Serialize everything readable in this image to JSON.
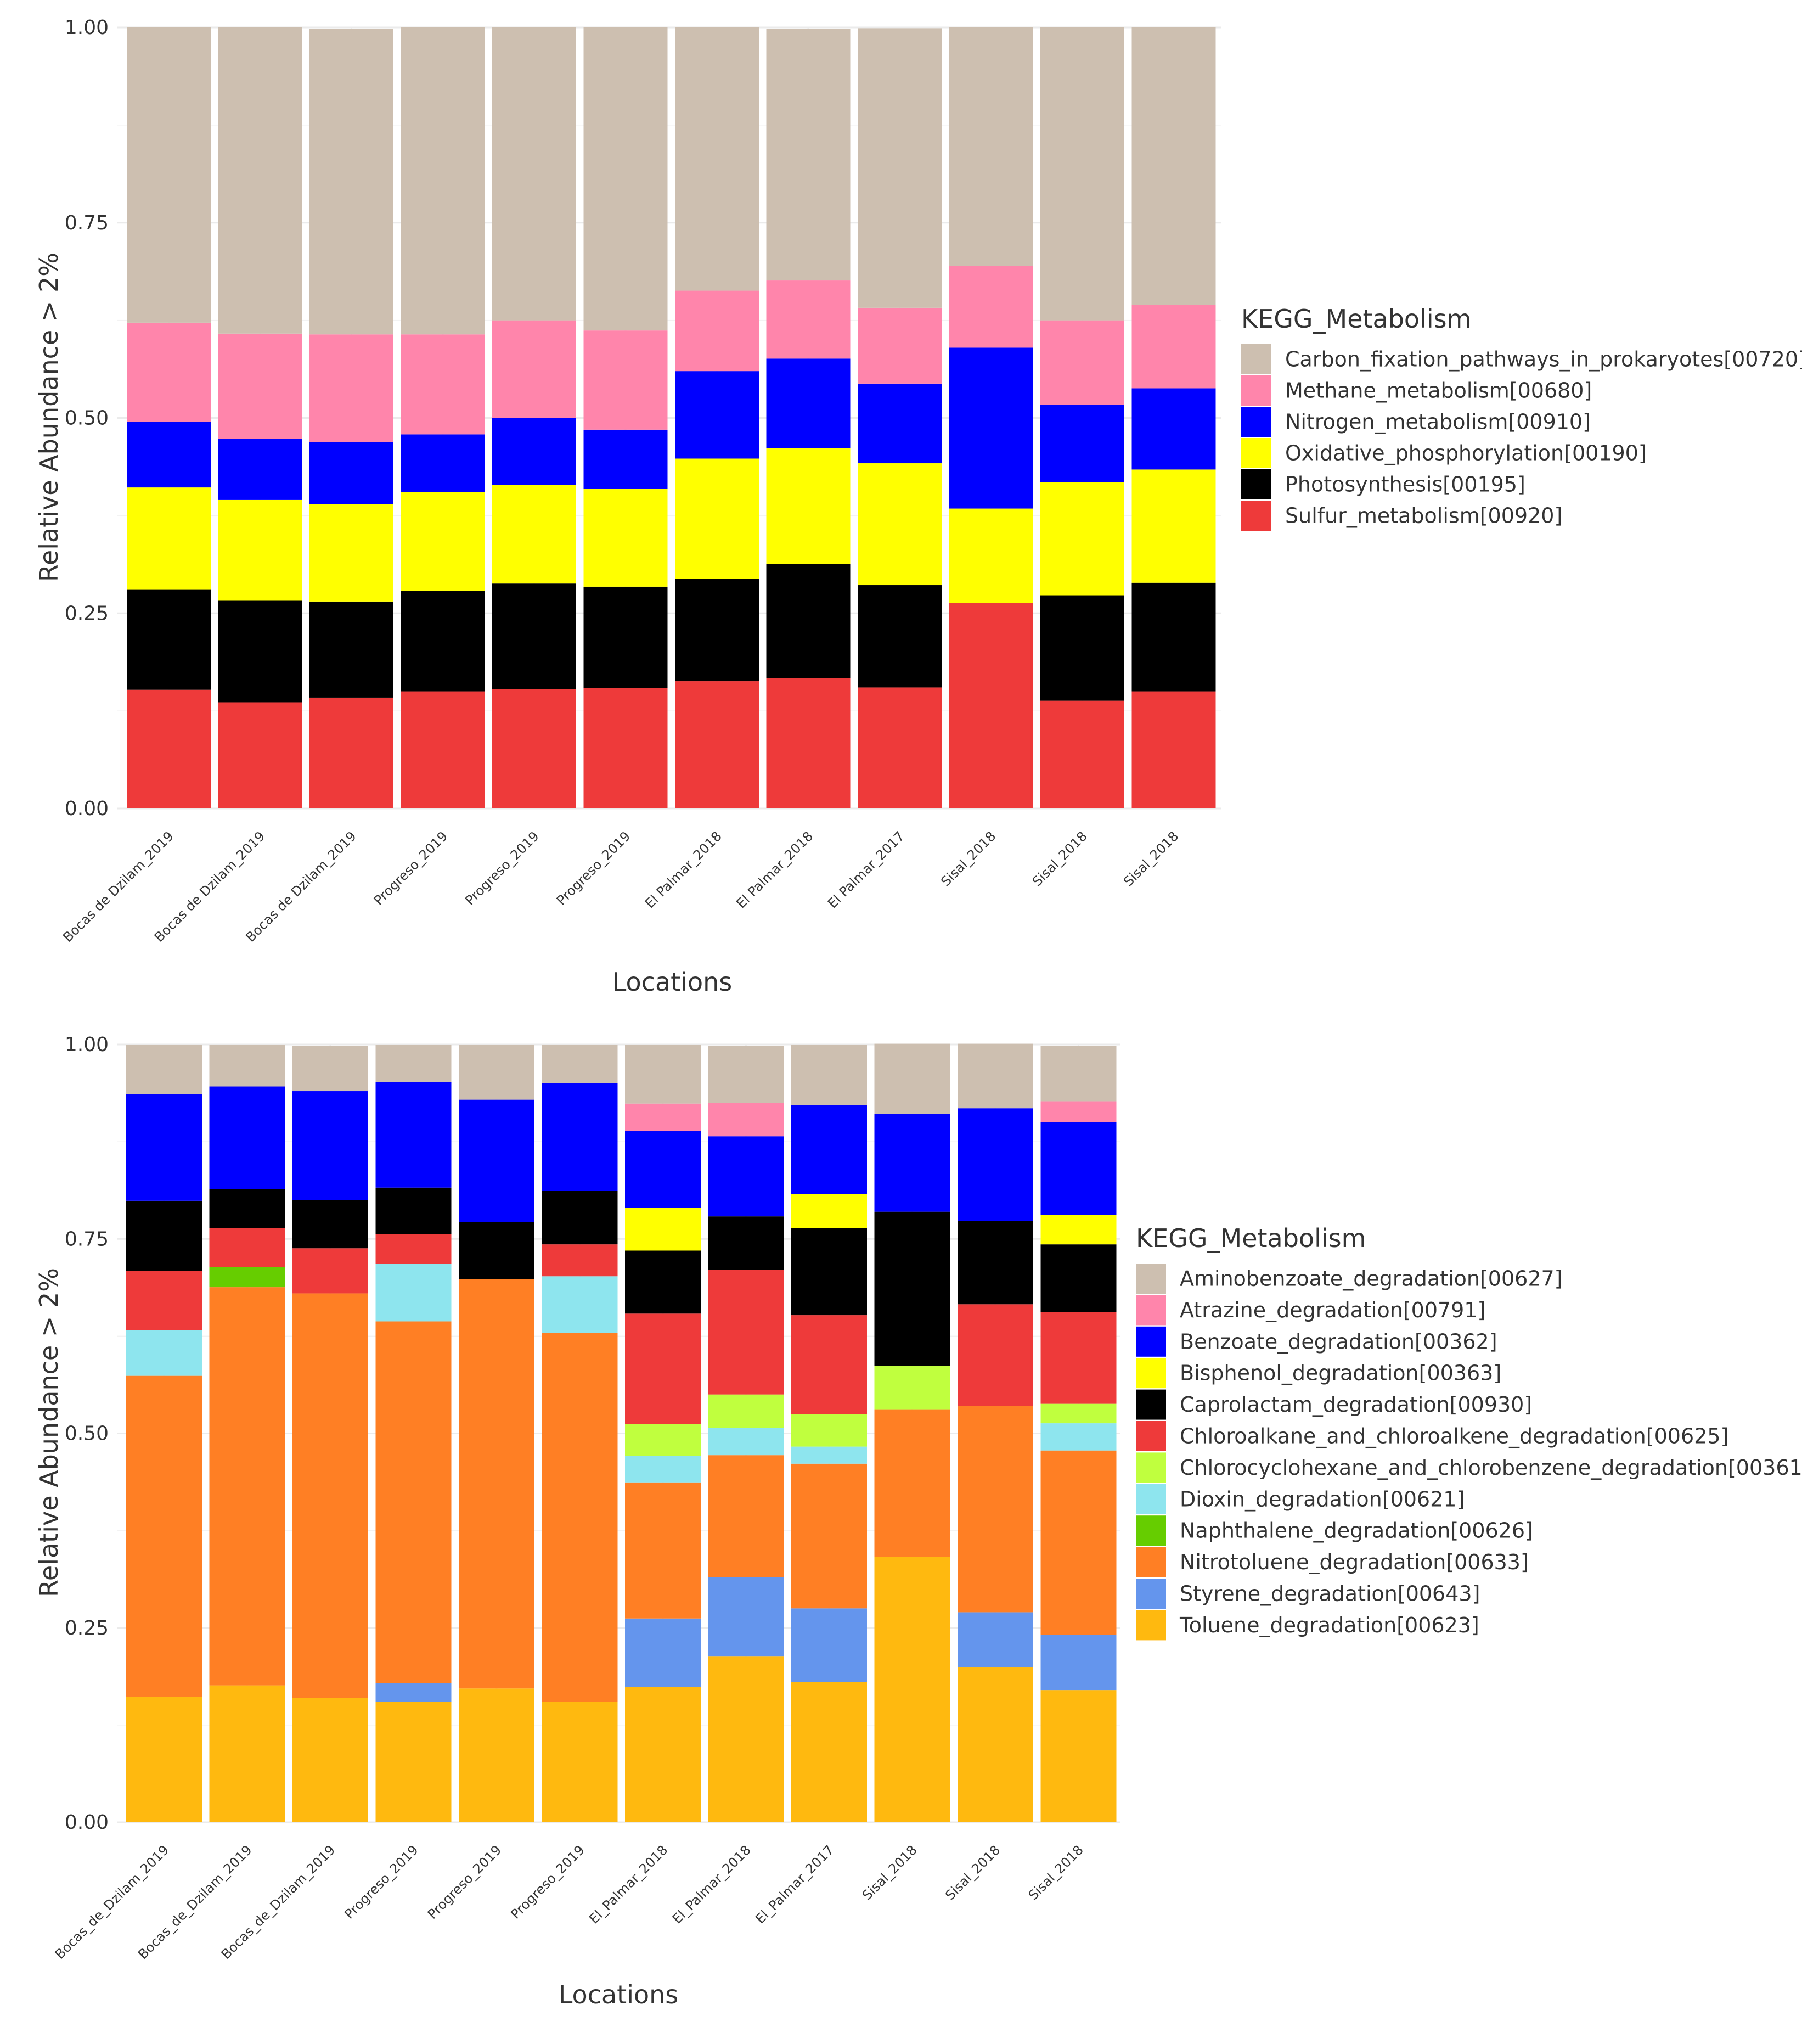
{
  "chart_data": [
    {
      "type": "bar",
      "stacked": true,
      "xlabel": "Locations",
      "ylabel": "Relative Abundance > 2%",
      "ylim": [
        0,
        1
      ],
      "yticks": [
        "0.00",
        "0.25",
        "0.50",
        "0.75",
        "1.00"
      ],
      "legend_title": "KEGG_Metabolism",
      "legend_position": "right",
      "categories": [
        "Bocas de Dzilam_2019",
        "Bocas de Dzilam_2019",
        "Bocas de Dzilam_2019",
        "Progreso_2019",
        "Progreso_2019",
        "Progreso_2019",
        "El Palmar_2018",
        "El Palmar_2018",
        "El Palmar_2017",
        "Sisal_2018",
        "Sisal_2018",
        "Sisal_2018"
      ],
      "series": [
        {
          "name": "Carbon_fixation_pathways_in_prokaryotes[00720]",
          "color": "#CDBFB0",
          "values": [
            0.378,
            0.392,
            0.391,
            0.393,
            0.375,
            0.388,
            0.337,
            0.322,
            0.358,
            0.305,
            0.375,
            0.355
          ]
        },
        {
          "name": "Methane_metabolism[00680]",
          "color": "#FF85AB",
          "values": [
            0.127,
            0.135,
            0.138,
            0.128,
            0.125,
            0.127,
            0.103,
            0.1,
            0.097,
            0.105,
            0.108,
            0.107
          ]
        },
        {
          "name": "Nitrogen_metabolism[00910]",
          "color": "#0000FF",
          "values": [
            0.084,
            0.078,
            0.079,
            0.074,
            0.086,
            0.076,
            0.112,
            0.115,
            0.102,
            0.206,
            0.099,
            0.104
          ]
        },
        {
          "name": "Oxidative_phosphorylation[00190]",
          "color": "#FFFF00",
          "values": [
            0.131,
            0.129,
            0.125,
            0.126,
            0.126,
            0.125,
            0.154,
            0.148,
            0.156,
            0.121,
            0.145,
            0.145
          ]
        },
        {
          "name": "Photosynthesis[00195]",
          "color": "#000000",
          "values": [
            0.128,
            0.13,
            0.123,
            0.129,
            0.135,
            0.13,
            0.131,
            0.146,
            0.131,
            0.0,
            0.135,
            0.139
          ]
        },
        {
          "name": "Sulfur_metabolism[00920]",
          "color": "#EE3A3A",
          "values": [
            0.152,
            0.136,
            0.142,
            0.15,
            0.153,
            0.154,
            0.163,
            0.167,
            0.155,
            0.263,
            0.138,
            0.15
          ]
        }
      ]
    },
    {
      "type": "bar",
      "stacked": true,
      "xlabel": "Locations",
      "ylabel": "Relative Abundance > 2%",
      "ylim": [
        0,
        1
      ],
      "yticks": [
        "0.00",
        "0.25",
        "0.50",
        "0.75",
        "1.00"
      ],
      "legend_title": "KEGG_Metabolism",
      "legend_position": "right",
      "categories": [
        "Bocas_de_Dzilam_2019",
        "Bocas_de_Dzilam_2019",
        "Bocas_de_Dzilam_2019",
        "Progreso_2019",
        "Progreso_2019",
        "Progreso_2019",
        "El_Palmar_2018",
        "El_Palmar_2018",
        "El_Palmar_2017",
        "Sisal_2018",
        "Sisal_2018",
        "Sisal_2018"
      ],
      "series": [
        {
          "name": "Aminobenzoate_degradation[00627]",
          "color": "#CDBFB0",
          "values": [
            0.064,
            0.054,
            0.058,
            0.048,
            0.071,
            0.05,
            0.076,
            0.073,
            0.078,
            0.09,
            0.083,
            0.071
          ]
        },
        {
          "name": "Atrazine_degradation[00791]",
          "color": "#FF85AB",
          "values": [
            0.0,
            0.0,
            0.0,
            0.0,
            0.0,
            0.0,
            0.035,
            0.043,
            0.0,
            0.0,
            0.0,
            0.027
          ]
        },
        {
          "name": "Benzoate_degradation[00362]",
          "color": "#0000FF",
          "values": [
            0.137,
            0.132,
            0.14,
            0.136,
            0.157,
            0.138,
            0.099,
            0.103,
            0.114,
            0.126,
            0.145,
            0.119
          ]
        },
        {
          "name": "Bisphenol_degradation[00363]",
          "color": "#FFFF00",
          "values": [
            0.0,
            0.0,
            0.0,
            0.0,
            0.0,
            0.0,
            0.055,
            0.0,
            0.044,
            0.0,
            0.0,
            0.038
          ]
        },
        {
          "name": "Caprolactam_degradation[00930]",
          "color": "#000000",
          "values": [
            0.09,
            0.05,
            0.062,
            0.06,
            0.074,
            0.069,
            0.081,
            0.069,
            0.112,
            0.198,
            0.107,
            0.087
          ]
        },
        {
          "name": "Chloroalkane_and_chloroalkene_degradation[00625]",
          "color": "#EE3A3A",
          "values": [
            0.076,
            0.05,
            0.058,
            0.038,
            0.0,
            0.041,
            0.142,
            0.16,
            0.127,
            0.0,
            0.131,
            0.118
          ]
        },
        {
          "name": "Chlorocyclohexane_and_chlorobenzene_degradation[00361]",
          "color": "#C0FF3E",
          "values": [
            0.0,
            0.0,
            0.0,
            0.0,
            0.0,
            0.0,
            0.041,
            0.043,
            0.042,
            0.056,
            0.0,
            0.025
          ]
        },
        {
          "name": "Dioxin_degradation[00621]",
          "color": "#8EE5EE",
          "values": [
            0.059,
            0.0,
            0.0,
            0.074,
            0.0,
            0.073,
            0.034,
            0.035,
            0.022,
            0.0,
            0.0,
            0.035
          ]
        },
        {
          "name": "Naphthalene_degradation[00626]",
          "color": "#66CD00",
          "values": [
            0.0,
            0.026,
            0.0,
            0.0,
            0.0,
            0.0,
            0.0,
            0.0,
            0.0,
            0.0,
            0.0,
            0.0
          ]
        },
        {
          "name": "Nitrotoluene_degradation[00633]",
          "color": "#FF7F24",
          "values": [
            0.413,
            0.512,
            0.52,
            0.465,
            0.526,
            0.474,
            0.175,
            0.157,
            0.186,
            0.19,
            0.265,
            0.237
          ]
        },
        {
          "name": "Styrene_degradation[00643]",
          "color": "#6495ED",
          "values": [
            0.0,
            0.0,
            0.0,
            0.024,
            0.0,
            0.0,
            0.088,
            0.102,
            0.095,
            0.0,
            0.071,
            0.071
          ]
        },
        {
          "name": "Toluene_degradation[00623]",
          "color": "#FFB90F",
          "values": [
            0.161,
            0.176,
            0.16,
            0.155,
            0.172,
            0.155,
            0.174,
            0.213,
            0.18,
            0.341,
            0.199,
            0.17
          ]
        }
      ]
    }
  ]
}
